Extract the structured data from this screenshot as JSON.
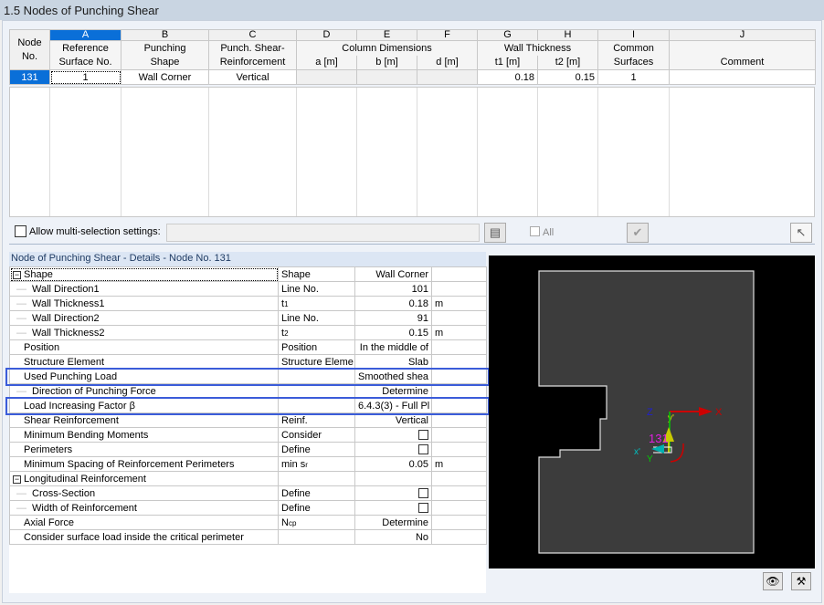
{
  "title": "1.5 Nodes of Punching Shear",
  "table": {
    "letters": [
      "A",
      "B",
      "C",
      "D",
      "E",
      "F",
      "G",
      "H",
      "I",
      "J"
    ],
    "node_header": [
      "Node",
      "No."
    ],
    "headers": [
      [
        "Reference",
        "Surface No."
      ],
      [
        "Punching",
        "Shape"
      ],
      [
        "Punch. Shear-",
        "Reinforcement"
      ],
      [
        "Column Dimensions",
        ""
      ],
      [
        "Wall Thickness",
        ""
      ],
      [
        "Common",
        "Surfaces"
      ],
      [
        "",
        "Comment"
      ]
    ],
    "sub_headers": {
      "d": "a [m]",
      "e": "b [m]",
      "f": "d [m]",
      "g": "t1 [m]",
      "h": "t2 [m]"
    },
    "rows": [
      {
        "node": "131",
        "ref_surface": "1",
        "shape": "Wall Corner",
        "reinforcement": "Vertical",
        "a": "",
        "b": "",
        "d": "",
        "t1": "0.18",
        "t2": "0.15",
        "common": "1",
        "comment": ""
      }
    ]
  },
  "multi": {
    "label": "Allow multi-selection settings:",
    "all_label": "All"
  },
  "details": {
    "header": "Node of Punching Shear - Details - Node No.  131",
    "rows": [
      {
        "label": "Shape",
        "sym": "Shape",
        "value": "Wall Corner",
        "unit": "",
        "level": 0,
        "expand": "minus"
      },
      {
        "label": "Wall Direction1",
        "sym": "Line No.",
        "value": "101",
        "unit": "",
        "level": 1
      },
      {
        "label": "Wall Thickness1",
        "sym": "t",
        "sub": "1",
        "value": "0.18",
        "unit": "m",
        "level": 1
      },
      {
        "label": "Wall Direction2",
        "sym": "Line No.",
        "value": "91",
        "unit": "",
        "level": 1
      },
      {
        "label": "Wall Thickness2",
        "sym": "t",
        "sub": "2",
        "value": "0.15",
        "unit": "m",
        "level": 1
      },
      {
        "label": "Position",
        "sym": "Position",
        "value": "In the middle of",
        "unit": "",
        "level": 0
      },
      {
        "label": "Structure Element",
        "sym": "Structure Eleme",
        "value": "Slab",
        "unit": "",
        "level": 0
      },
      {
        "label": "Used Punching Load",
        "sym": "",
        "value": "Smoothed shea",
        "unit": "",
        "level": 0
      },
      {
        "label": "Direction of Punching Force",
        "sym": "",
        "value": "Determine",
        "unit": "",
        "level": 1
      },
      {
        "label": "Load Increasing Factor β",
        "sym": "",
        "value": "6.4.3(3) - Full Pl",
        "unit": "",
        "level": 0
      },
      {
        "label": "Shear Reinforcement",
        "sym": "Reinf.",
        "value": "Vertical",
        "unit": "",
        "level": 0
      },
      {
        "label": "Minimum Bending Moments",
        "sym": "Consider",
        "value": "",
        "checkbox": true,
        "unit": "",
        "level": 0
      },
      {
        "label": "Perimeters",
        "sym": "Define",
        "value": "",
        "checkbox": true,
        "unit": "",
        "level": 0
      },
      {
        "label": "Minimum Spacing of Reinforcement Perimeters",
        "sym": "min s",
        "sub": "r",
        "value": "0.05",
        "unit": "m",
        "level": 0
      },
      {
        "label": "Longitudinal Reinforcement",
        "sym": "",
        "value": "",
        "unit": "",
        "level": 0,
        "expand": "minus"
      },
      {
        "label": "Cross-Section",
        "sym": "Define",
        "value": "",
        "checkbox": true,
        "unit": "",
        "level": 1
      },
      {
        "label": "Width of Reinforcement",
        "sym": "Define",
        "value": "",
        "checkbox": true,
        "unit": "",
        "level": 1
      },
      {
        "label": "Axial Force",
        "sym": "N",
        "sub": "cp",
        "value": "Determine",
        "unit": "",
        "level": 0
      },
      {
        "label": "Consider surface load inside the critical perimeter",
        "sym": "",
        "value": "No",
        "unit": "",
        "level": 0
      }
    ]
  },
  "viewer": {
    "node_label": "131",
    "axes": {
      "x": "X",
      "y": "Y",
      "z": "Z",
      "xl": "x'",
      "yl": "y'"
    },
    "colors": {
      "x": "#cc0000",
      "y": "#00cc00",
      "z": "#2020cc",
      "node": "#e020e0",
      "local": "#00c0c0"
    }
  }
}
